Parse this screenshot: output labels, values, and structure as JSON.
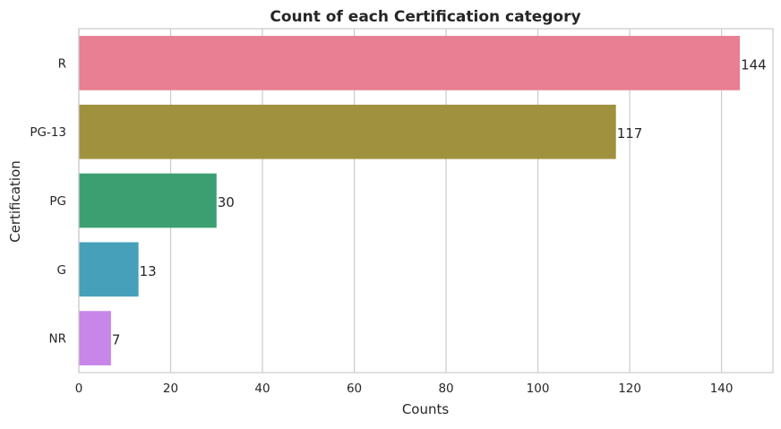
{
  "chart_data": {
    "type": "bar",
    "orientation": "horizontal",
    "title": "Count of each Certification category",
    "xlabel": "Counts",
    "ylabel": "Certification",
    "categories": [
      "R",
      "PG-13",
      "PG",
      "G",
      "NR"
    ],
    "values": [
      144,
      117,
      30,
      13,
      7
    ],
    "bar_colors": [
      "#e87f92",
      "#a0913e",
      "#3c9f72",
      "#46a0ba",
      "#c786e8"
    ],
    "xlim": [
      0,
      151.2
    ],
    "xticks": [
      0,
      20,
      40,
      60,
      80,
      100,
      120,
      140
    ],
    "grid": "vertical",
    "data_labels": true
  }
}
